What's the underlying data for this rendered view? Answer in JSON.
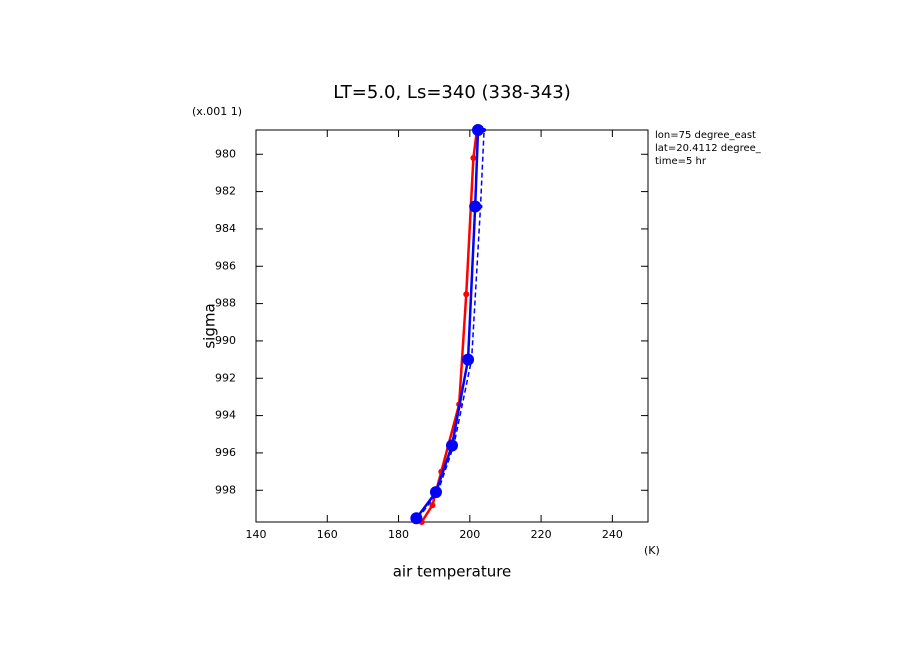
{
  "chart_data": {
    "type": "line",
    "title": "LT=5.0, Ls=340 (338-343)",
    "y_scale_label": "(x.001 1)",
    "ylabel": "sigma",
    "xlabel": "air temperature",
    "x_unit_label": "(K)",
    "annotations": [
      "lon=75 degree_east",
      "lat=20.4112 degree_",
      "time=5 hr"
    ],
    "xlim": [
      140,
      250
    ],
    "xticks": [
      140,
      160,
      180,
      200,
      220,
      240
    ],
    "ylim": [
      999.7,
      978.7
    ],
    "yticks": [
      980,
      982,
      984,
      986,
      988,
      990,
      992,
      994,
      996,
      998
    ],
    "series": [
      {
        "color": "#ff0000",
        "dash": false,
        "marker_size": 3,
        "x": [
          186.5,
          189.5,
          192,
          197,
          199,
          201,
          202
        ],
        "values": [
          999.7,
          998.8,
          997,
          993.4,
          987.5,
          980.2,
          978.7
        ]
      },
      {
        "color": "#0000ff",
        "dash": true,
        "marker_size": 2,
        "x": [
          185.5,
          191,
          195.5,
          200.5,
          203,
          204
        ],
        "values": [
          999.5,
          998.1,
          995.6,
          991,
          982.8,
          978.7
        ]
      },
      {
        "color": "#0000ff",
        "dash": false,
        "marker_size": 6,
        "x": [
          185,
          190.5,
          195,
          199.5,
          201.5,
          202.3
        ],
        "values": [
          999.5,
          998.1,
          995.6,
          991,
          982.8,
          978.7
        ]
      }
    ]
  }
}
